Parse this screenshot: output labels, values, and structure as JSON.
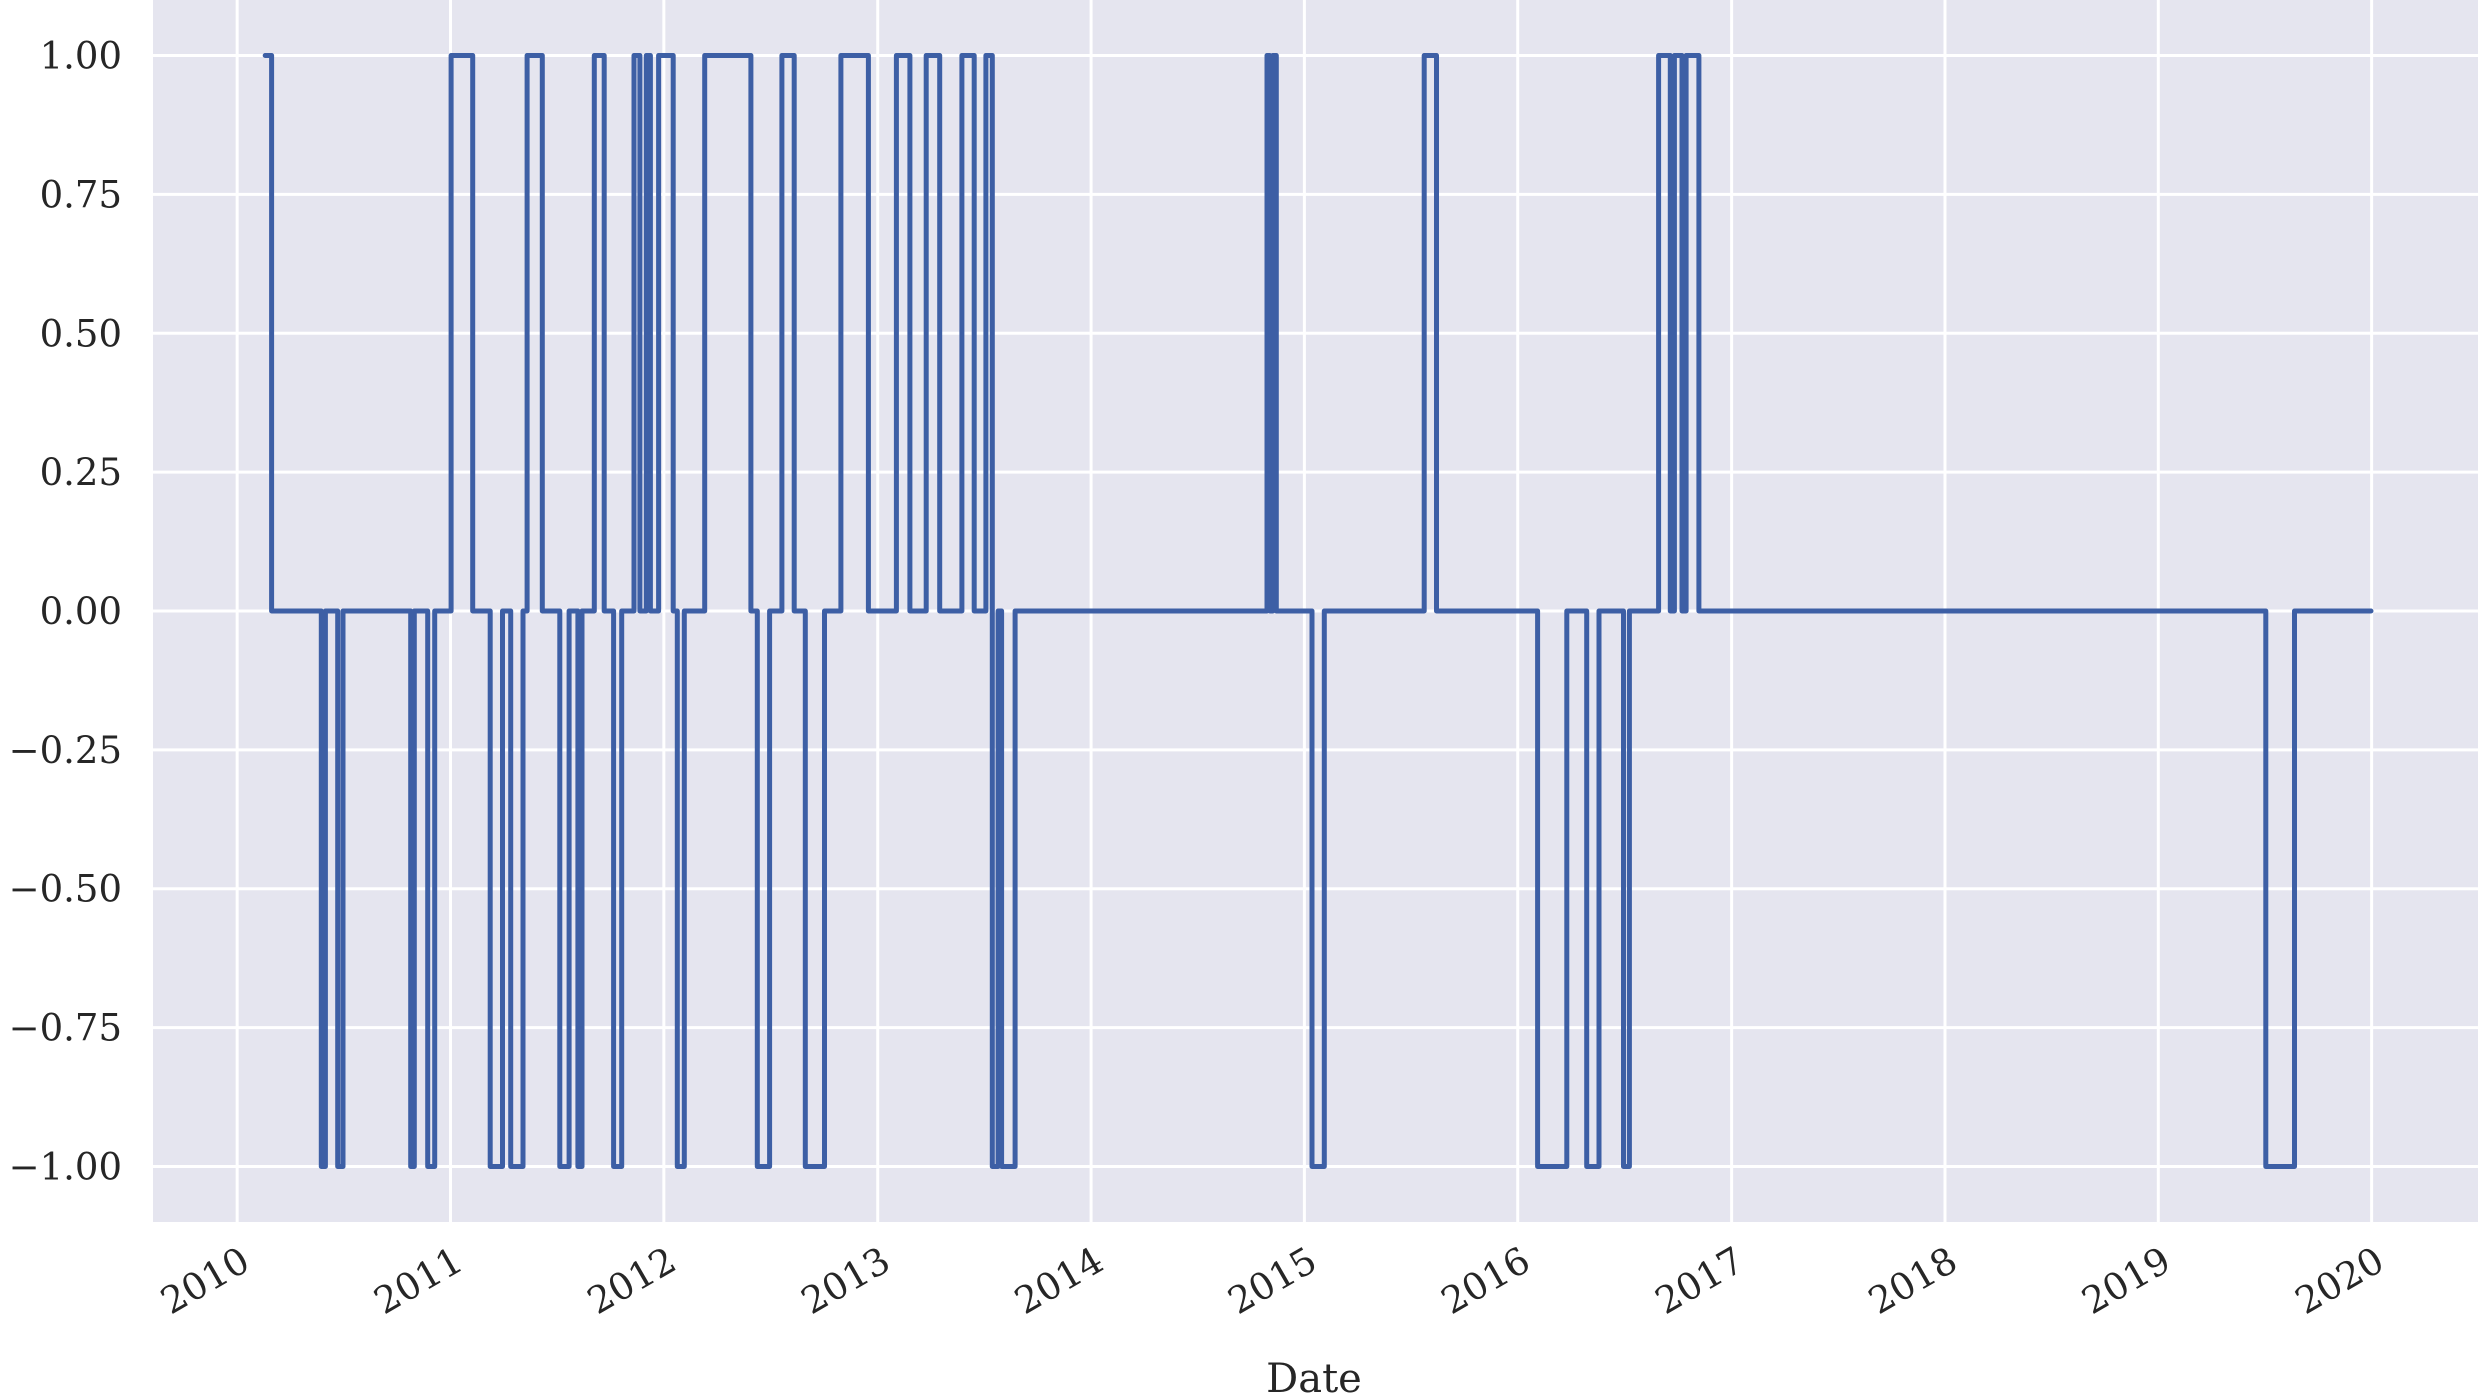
{
  "chart_data": {
    "type": "line",
    "xlabel": "Date",
    "ylabel": "",
    "x_axis_type": "date",
    "xlim": [
      "2009-08-10",
      "2020-07-01"
    ],
    "ylim": [
      -1.1,
      1.1
    ],
    "x_ticks": [
      "2010",
      "2011",
      "2012",
      "2013",
      "2014",
      "2015",
      "2016",
      "2017",
      "2018",
      "2019",
      "2020"
    ],
    "y_ticks": [
      "1.00",
      "0.75",
      "0.50",
      "0.25",
      "0.00",
      "−0.25",
      "−0.50",
      "−0.75",
      "−1.00"
    ],
    "grid": true,
    "legend": "none",
    "colors": {
      "line": "#3d5fa5",
      "background": "#e5e5ef",
      "grid": "#ffffff"
    },
    "series": [
      {
        "x": [
          "2010-02-18",
          "2010-03-01",
          "2010-05-25",
          "2010-06-01",
          "2010-06-22",
          "2010-07-01",
          "2010-10-25",
          "2010-10-31",
          "2010-11-23",
          "2010-12-05",
          "2011-01-02",
          "2011-02-08",
          "2011-03-10",
          "2011-03-31",
          "2011-04-14",
          "2011-05-05",
          "2011-05-12",
          "2011-06-07",
          "2011-07-07",
          "2011-07-23",
          "2011-08-07",
          "2011-08-14",
          "2011-09-04",
          "2011-09-21",
          "2011-10-07",
          "2011-10-21",
          "2011-11-11",
          "2011-11-21",
          "2011-12-02",
          "2011-12-09",
          "2011-12-23",
          "2012-01-17",
          "2012-01-24",
          "2012-02-05",
          "2012-03-11",
          "2012-05-29",
          "2012-06-09",
          "2012-06-30",
          "2012-07-21",
          "2012-08-11",
          "2012-08-30",
          "2012-10-02",
          "2012-10-30",
          "2012-12-16",
          "2013-02-02",
          "2013-02-25",
          "2013-03-25",
          "2013-04-17",
          "2013-05-25",
          "2013-06-15",
          "2013-07-05",
          "2013-07-16",
          "2013-07-26",
          "2013-08-01",
          "2013-08-24",
          "2014-10-29",
          "2014-11-03",
          "2014-11-08",
          "2014-11-14",
          "2015-01-14",
          "2015-02-04",
          "2015-07-25",
          "2015-08-15",
          "2016-02-04",
          "2016-03-25",
          "2016-04-28",
          "2016-05-19",
          "2016-06-30",
          "2016-07-10",
          "2016-08-29",
          "2016-09-18",
          "2016-09-25",
          "2016-10-08",
          "2016-10-15",
          "2016-11-06",
          "2019-07-04",
          "2019-08-22",
          "2019-12-31"
        ],
        "y": [
          1,
          0,
          -1,
          0,
          -1,
          0,
          -1,
          0,
          -1,
          0,
          1,
          0,
          -1,
          0,
          -1,
          0,
          1,
          0,
          -1,
          0,
          -1,
          0,
          1,
          0,
          -1,
          0,
          1,
          0,
          1,
          0,
          1,
          0,
          -1,
          0,
          1,
          0,
          -1,
          0,
          1,
          0,
          -1,
          0,
          1,
          0,
          1,
          0,
          1,
          0,
          1,
          0,
          1,
          -1,
          0,
          -1,
          0,
          1,
          0,
          1,
          0,
          -1,
          0,
          1,
          0,
          -1,
          0,
          -1,
          0,
          -1,
          0,
          1,
          0,
          1,
          0,
          1,
          0,
          -1,
          0,
          0
        ]
      }
    ]
  }
}
